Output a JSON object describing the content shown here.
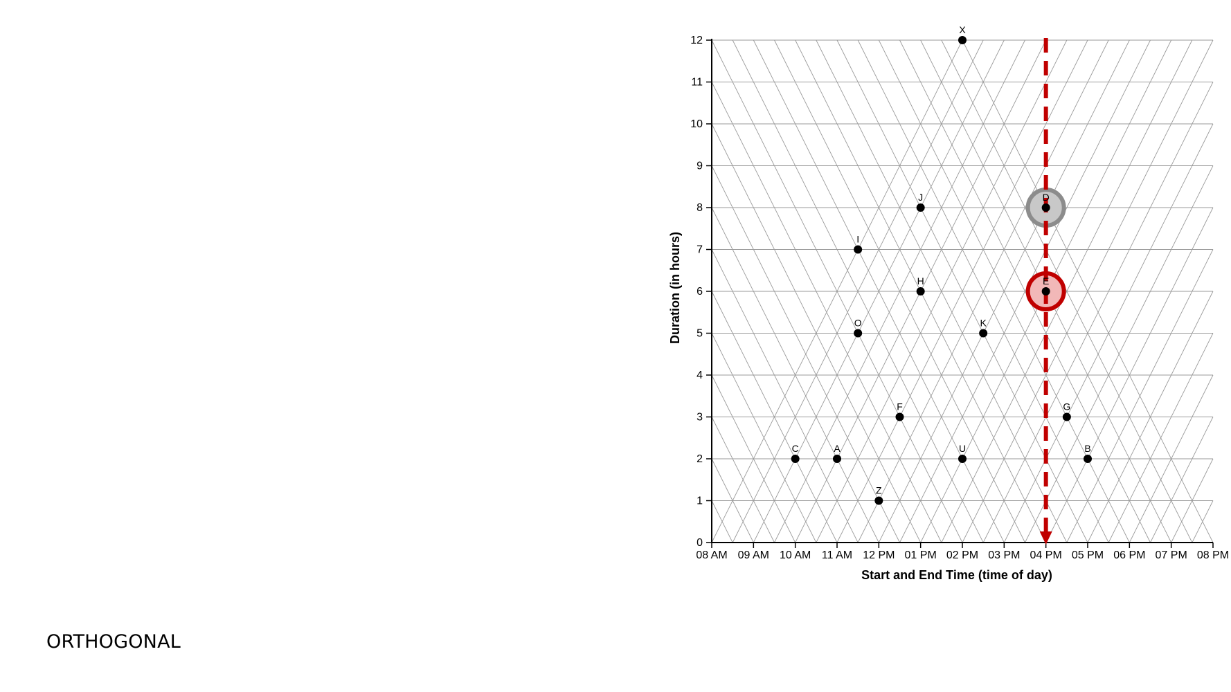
{
  "caption": "ORTHOGONAL",
  "chart_data": {
    "type": "scatter",
    "title": "",
    "xlabel": "Start and End Time (time of day)",
    "ylabel": "Duration (in hours)",
    "x_tick_labels": [
      "08 AM",
      "09 AM",
      "10 AM",
      "11 AM",
      "12 PM",
      "01 PM",
      "02 PM",
      "03 PM",
      "04 PM",
      "05 PM",
      "06 PM",
      "07 PM",
      "08 PM"
    ],
    "y_ticks": [
      0,
      1,
      2,
      3,
      4,
      5,
      6,
      7,
      8,
      9,
      10,
      11,
      12
    ],
    "x_range_hours": [
      8,
      20
    ],
    "ylim": [
      0,
      12
    ],
    "grid": "horizontal lines plus triangular (diagonal) start/end time lattice",
    "points": [
      {
        "label": "X",
        "midpoint_hour": 14,
        "duration": 12
      },
      {
        "label": "J",
        "midpoint_hour": 13,
        "duration": 8
      },
      {
        "label": "D",
        "midpoint_hour": 16,
        "duration": 8
      },
      {
        "label": "I",
        "midpoint_hour": 11.5,
        "duration": 7
      },
      {
        "label": "H",
        "midpoint_hour": 13,
        "duration": 6
      },
      {
        "label": "E",
        "midpoint_hour": 16,
        "duration": 6
      },
      {
        "label": "O",
        "midpoint_hour": 11.5,
        "duration": 5
      },
      {
        "label": "K",
        "midpoint_hour": 14.5,
        "duration": 5
      },
      {
        "label": "F",
        "midpoint_hour": 12.5,
        "duration": 3
      },
      {
        "label": "G",
        "midpoint_hour": 16.5,
        "duration": 3
      },
      {
        "label": "C",
        "midpoint_hour": 10,
        "duration": 2
      },
      {
        "label": "A",
        "midpoint_hour": 11,
        "duration": 2
      },
      {
        "label": "U",
        "midpoint_hour": 14,
        "duration": 2
      },
      {
        "label": "B",
        "midpoint_hour": 17,
        "duration": 2
      },
      {
        "label": "Z",
        "midpoint_hour": 12,
        "duration": 1
      }
    ],
    "highlights": [
      {
        "label": "D",
        "color": "#8c8c8c",
        "fill": "#c8c8c8"
      },
      {
        "label": "E",
        "color": "#c00000",
        "fill": "#f2b8b8"
      }
    ],
    "reference_line": {
      "hour": 16,
      "color": "#c00000",
      "style": "dashed",
      "arrow": "down"
    }
  }
}
